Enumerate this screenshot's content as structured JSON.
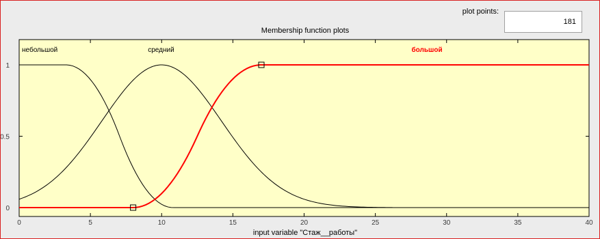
{
  "panel": {
    "title": "Membership function plots",
    "plot_points_label": "plot points:",
    "plot_points_value": "181"
  },
  "colors": {
    "plot_background": "#ffffc8",
    "default_curve": "#000000",
    "selected_curve": "#ff0000"
  },
  "chart_data": {
    "type": "line",
    "title": "Membership function plots",
    "xlabel": "input variable \"Стаж__работы\"",
    "ylabel": "",
    "xlim": [
      0,
      40
    ],
    "ylim": [
      0,
      1.2
    ],
    "x_ticks": [
      "0",
      "5",
      "10",
      "15",
      "20",
      "25",
      "30",
      "35",
      "40"
    ],
    "y_ticks": [
      "0",
      "0.5",
      "1"
    ],
    "grid": false,
    "series": [
      {
        "name": "небольшой",
        "mf_type": "zmf",
        "params": [
          3.3,
          10.8
        ],
        "selected": false
      },
      {
        "name": "средний",
        "mf_type": "gaussmf",
        "params": [
          4.2,
          10
        ],
        "domain": [
          0,
          26.2
        ],
        "selected": false
      },
      {
        "name": "большой",
        "mf_type": "smf",
        "params": [
          8,
          17
        ],
        "selected": true,
        "handles_x": [
          8,
          17
        ]
      }
    ]
  }
}
